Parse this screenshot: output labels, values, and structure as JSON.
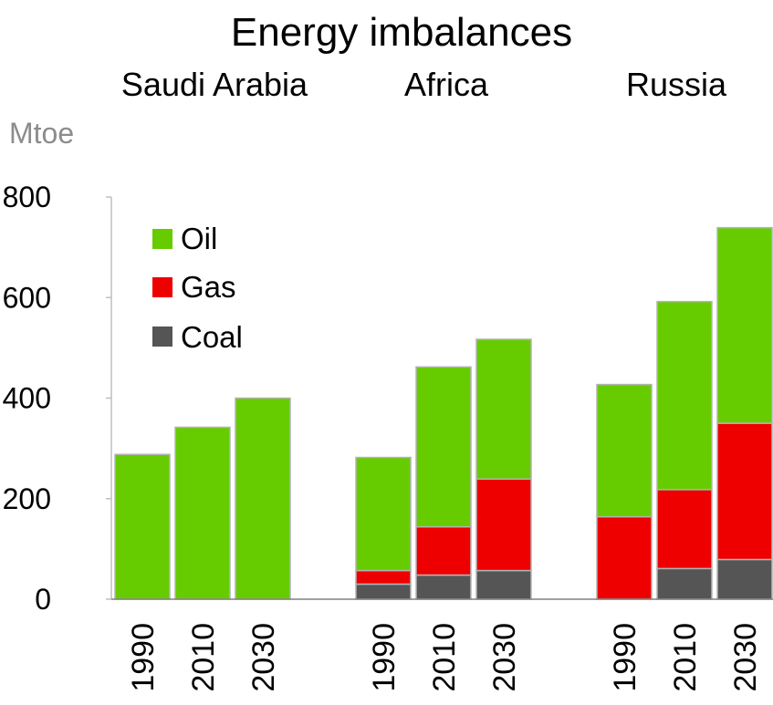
{
  "chart_data": {
    "type": "bar",
    "stacked": true,
    "title": "Energy imbalances",
    "unit_label": "Mtoe",
    "groups": [
      {
        "name": "Saudi Arabia",
        "categories": [
          "1990",
          "2010",
          "2030"
        ],
        "series": {
          "Coal": [
            0,
            0,
            0
          ],
          "Gas": [
            0,
            0,
            0
          ],
          "Oil": [
            288,
            342,
            400
          ]
        }
      },
      {
        "name": "Africa",
        "categories": [
          "1990",
          "2010",
          "2030"
        ],
        "series": {
          "Coal": [
            30,
            48,
            57
          ],
          "Gas": [
            27,
            96,
            182
          ],
          "Oil": [
            225,
            318,
            278
          ]
        }
      },
      {
        "name": "Russia",
        "categories": [
          "1990",
          "2010",
          "2030"
        ],
        "series": {
          "Coal": [
            0,
            61,
            79
          ],
          "Gas": [
            164,
            157,
            271
          ],
          "Oil": [
            263,
            374,
            389
          ]
        }
      }
    ],
    "legend": [
      {
        "name": "Oil",
        "color": "#66cc00"
      },
      {
        "name": "Gas",
        "color": "#ee0000"
      },
      {
        "name": "Coal",
        "color": "#555555"
      }
    ],
    "ylim": [
      0,
      800
    ],
    "yticks": [
      0,
      200,
      400,
      600,
      800
    ],
    "grid": false,
    "legend_position": "top-left"
  }
}
